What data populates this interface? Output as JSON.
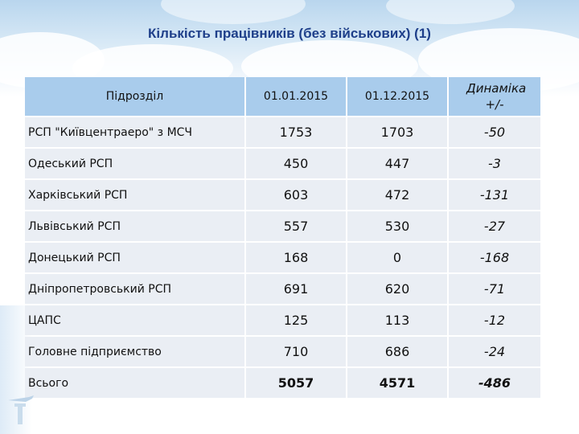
{
  "title": "Кількість працівників (без військових) (1)",
  "table": {
    "headers": [
      "Підрозділ",
      "01.01.2015",
      "01.12.2015",
      "Динаміка +/-"
    ],
    "rows": [
      {
        "name": "РСП \"Київцентраеро\" з МСЧ",
        "v2015_01": "1753",
        "v2015_12": "1703",
        "dyn": "-50"
      },
      {
        "name": "Одеський РСП",
        "v2015_01": "450",
        "v2015_12": "447",
        "dyn": "-3"
      },
      {
        "name": "Харківський РСП",
        "v2015_01": "603",
        "v2015_12": "472",
        "dyn": "-131"
      },
      {
        "name": "Львівський РСП",
        "v2015_01": "557",
        "v2015_12": "530",
        "dyn": "-27"
      },
      {
        "name": "Донецький РСП",
        "v2015_01": "168",
        "v2015_12": "0",
        "dyn": "-168"
      },
      {
        "name": "Дніпропетровський РСП",
        "v2015_01": "691",
        "v2015_12": "620",
        "dyn": "-71"
      },
      {
        "name": "ЦАПС",
        "v2015_01": "125",
        "v2015_12": "113",
        "dyn": "-12"
      },
      {
        "name": "Головне підприємство",
        "v2015_01": "710",
        "v2015_12": "686",
        "dyn": "-24"
      }
    ],
    "total": {
      "name": "Всього",
      "v2015_01": "5057",
      "v2015_12": "4571",
      "dyn": "-486"
    }
  },
  "colors": {
    "title": "#1e3f8a",
    "header_bg": "#a9ccec",
    "row_bg": "#eaeef4"
  },
  "icons": [
    "airplane-logo-icon"
  ]
}
